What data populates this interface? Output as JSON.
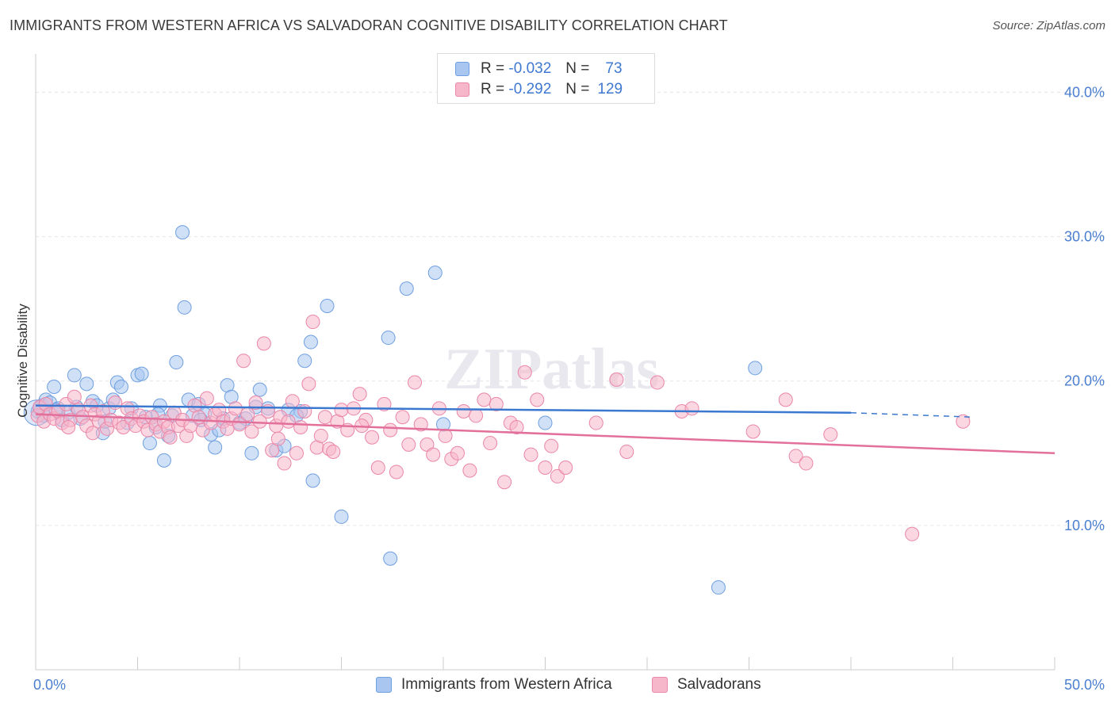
{
  "title": "IMMIGRANTS FROM WESTERN AFRICA VS SALVADORAN COGNITIVE DISABILITY CORRELATION CHART",
  "source": "Source: ZipAtlas.com",
  "watermark": "ZIPatlas",
  "legend_stats": [
    {
      "r_label": "R =",
      "r_value": "-0.032",
      "n_label": "N =",
      "n_value": "73",
      "color": "#a8c6f0",
      "border": "#6f9fe0"
    },
    {
      "r_label": "R =",
      "r_value": "-0.292",
      "n_label": "N =",
      "n_value": "129",
      "color": "#f7b7cb",
      "border": "#ea86a8"
    }
  ],
  "chart_data": {
    "type": "scatter",
    "title": "IMMIGRANTS FROM WESTERN AFRICA VS SALVADORAN COGNITIVE DISABILITY CORRELATION CHART",
    "xlabel": "",
    "ylabel": "Cognitive Disability",
    "xlim": [
      0,
      50
    ],
    "ylim": [
      0,
      42
    ],
    "x_tick_labels": [
      "0.0%",
      "50.0%"
    ],
    "y_ticks": [
      10,
      20,
      30,
      40
    ],
    "y_tick_labels": [
      "10.0%",
      "20.0%",
      "30.0%",
      "40.0%"
    ],
    "grid": true,
    "legend_position": "bottom",
    "series": [
      {
        "name": "Immigrants from Western Africa",
        "color": "#a8c6f0",
        "edge": "#6f9fe0",
        "trend": {
          "x": [
            0,
            40,
            46
          ],
          "y": [
            18.3,
            17.8,
            17.5
          ],
          "solid_until": 40,
          "color": "#3b78d0"
        },
        "points": [
          [
            0.1,
            17.9
          ],
          [
            0.3,
            18.3
          ],
          [
            0.5,
            18.7
          ],
          [
            0.7,
            18.5
          ],
          [
            0.9,
            19.6
          ],
          [
            1.1,
            18.1
          ],
          [
            1.3,
            17.3
          ],
          [
            1.6,
            17.8
          ],
          [
            1.9,
            20.4
          ],
          [
            2.2,
            17.4
          ],
          [
            2.5,
            19.8
          ],
          [
            2.8,
            18.6
          ],
          [
            3.0,
            18.3
          ],
          [
            3.3,
            16.4
          ],
          [
            3.6,
            18.1
          ],
          [
            3.8,
            18.7
          ],
          [
            4.0,
            19.9
          ],
          [
            4.2,
            19.6
          ],
          [
            4.5,
            17.1
          ],
          [
            4.7,
            18.1
          ],
          [
            5.0,
            20.4
          ],
          [
            5.2,
            20.5
          ],
          [
            5.4,
            17.5
          ],
          [
            5.6,
            15.7
          ],
          [
            5.9,
            16.8
          ],
          [
            6.1,
            18.3
          ],
          [
            6.3,
            14.5
          ],
          [
            6.5,
            16.2
          ],
          [
            6.7,
            17.6
          ],
          [
            6.9,
            21.3
          ],
          [
            7.2,
            30.3
          ],
          [
            7.3,
            25.1
          ],
          [
            7.5,
            18.7
          ],
          [
            7.7,
            17.6
          ],
          [
            8.0,
            18.4
          ],
          [
            8.3,
            17.7
          ],
          [
            8.6,
            16.3
          ],
          [
            8.8,
            15.4
          ],
          [
            9.0,
            16.6
          ],
          [
            9.2,
            17.4
          ],
          [
            9.4,
            19.7
          ],
          [
            9.6,
            18.9
          ],
          [
            10.0,
            17.1
          ],
          [
            10.3,
            17.4
          ],
          [
            10.6,
            15.0
          ],
          [
            11.0,
            19.4
          ],
          [
            11.4,
            18.1
          ],
          [
            11.8,
            15.2
          ],
          [
            12.2,
            15.5
          ],
          [
            12.4,
            18.0
          ],
          [
            13.0,
            17.9
          ],
          [
            13.2,
            21.4
          ],
          [
            13.5,
            22.7
          ],
          [
            13.6,
            13.1
          ],
          [
            14.3,
            25.2
          ],
          [
            15.0,
            10.6
          ],
          [
            17.3,
            23.0
          ],
          [
            17.4,
            7.7
          ],
          [
            18.2,
            26.4
          ],
          [
            19.6,
            27.5
          ],
          [
            20.0,
            17.0
          ],
          [
            25.0,
            17.1
          ],
          [
            33.5,
            5.7
          ],
          [
            35.3,
            20.9
          ],
          [
            0.2,
            18.1
          ],
          [
            0.4,
            17.6
          ],
          [
            1.0,
            18.0
          ],
          [
            2.0,
            18.2
          ],
          [
            3.4,
            17.2
          ],
          [
            6.0,
            17.7
          ],
          [
            8.1,
            17.3
          ],
          [
            10.8,
            18.2
          ],
          [
            12.8,
            17.6
          ]
        ]
      },
      {
        "name": "Salvadorans",
        "color": "#f7b7cb",
        "edge": "#ea86a8",
        "trend": {
          "x": [
            0,
            50
          ],
          "y": [
            17.7,
            15.0
          ],
          "color": "#e2709a"
        },
        "points": [
          [
            0.1,
            17.6
          ],
          [
            0.2,
            18.2
          ],
          [
            0.4,
            17.2
          ],
          [
            0.5,
            18.4
          ],
          [
            0.7,
            17.7
          ],
          [
            0.9,
            17.4
          ],
          [
            1.1,
            17.9
          ],
          [
            1.3,
            17.1
          ],
          [
            1.5,
            18.4
          ],
          [
            1.7,
            17.3
          ],
          [
            1.9,
            18.9
          ],
          [
            2.1,
            18.0
          ],
          [
            2.3,
            17.5
          ],
          [
            2.5,
            16.9
          ],
          [
            2.7,
            18.3
          ],
          [
            2.9,
            17.7
          ],
          [
            3.1,
            17.2
          ],
          [
            3.3,
            17.9
          ],
          [
            3.5,
            16.7
          ],
          [
            3.7,
            17.3
          ],
          [
            3.9,
            18.5
          ],
          [
            4.1,
            17.1
          ],
          [
            4.3,
            16.8
          ],
          [
            4.5,
            18.1
          ],
          [
            4.7,
            17.4
          ],
          [
            4.9,
            16.9
          ],
          [
            5.1,
            17.6
          ],
          [
            5.3,
            17.2
          ],
          [
            5.5,
            16.6
          ],
          [
            5.7,
            17.5
          ],
          [
            5.9,
            17.0
          ],
          [
            6.1,
            16.5
          ],
          [
            6.3,
            17.2
          ],
          [
            6.5,
            16.8
          ],
          [
            6.8,
            17.8
          ],
          [
            7.0,
            16.9
          ],
          [
            7.2,
            17.3
          ],
          [
            7.4,
            16.2
          ],
          [
            7.6,
            16.9
          ],
          [
            7.8,
            18.3
          ],
          [
            8.0,
            17.5
          ],
          [
            8.2,
            16.6
          ],
          [
            8.4,
            18.8
          ],
          [
            8.6,
            17.1
          ],
          [
            8.8,
            17.7
          ],
          [
            9.0,
            18.0
          ],
          [
            9.2,
            17.2
          ],
          [
            9.4,
            16.7
          ],
          [
            9.6,
            17.4
          ],
          [
            9.8,
            18.1
          ],
          [
            10.0,
            17.0
          ],
          [
            10.2,
            21.4
          ],
          [
            10.4,
            17.7
          ],
          [
            10.6,
            16.5
          ],
          [
            10.8,
            18.5
          ],
          [
            11.0,
            17.2
          ],
          [
            11.2,
            22.6
          ],
          [
            11.4,
            17.9
          ],
          [
            11.6,
            15.2
          ],
          [
            11.8,
            16.9
          ],
          [
            12.0,
            17.5
          ],
          [
            12.2,
            14.3
          ],
          [
            12.4,
            17.2
          ],
          [
            12.6,
            18.6
          ],
          [
            12.8,
            15.0
          ],
          [
            13.0,
            16.8
          ],
          [
            13.2,
            17.9
          ],
          [
            13.4,
            19.8
          ],
          [
            13.6,
            24.1
          ],
          [
            13.8,
            15.4
          ],
          [
            14.0,
            16.2
          ],
          [
            14.2,
            17.5
          ],
          [
            14.4,
            15.3
          ],
          [
            14.6,
            15.1
          ],
          [
            14.8,
            17.2
          ],
          [
            15.0,
            18.0
          ],
          [
            15.3,
            16.6
          ],
          [
            15.6,
            18.1
          ],
          [
            15.9,
            19.1
          ],
          [
            16.2,
            17.3
          ],
          [
            16.5,
            16.1
          ],
          [
            16.8,
            14.0
          ],
          [
            17.1,
            18.4
          ],
          [
            17.4,
            16.6
          ],
          [
            17.7,
            13.7
          ],
          [
            18.0,
            17.5
          ],
          [
            18.3,
            15.6
          ],
          [
            18.6,
            19.9
          ],
          [
            18.9,
            17.0
          ],
          [
            19.2,
            15.6
          ],
          [
            19.5,
            14.9
          ],
          [
            19.8,
            18.1
          ],
          [
            20.1,
            16.2
          ],
          [
            20.4,
            14.6
          ],
          [
            20.7,
            15.0
          ],
          [
            21.0,
            17.9
          ],
          [
            21.3,
            13.8
          ],
          [
            21.6,
            17.6
          ],
          [
            22.0,
            18.7
          ],
          [
            22.3,
            15.7
          ],
          [
            22.6,
            18.4
          ],
          [
            23.0,
            13.0
          ],
          [
            23.3,
            17.1
          ],
          [
            23.6,
            16.8
          ],
          [
            24.0,
            20.6
          ],
          [
            24.3,
            14.9
          ],
          [
            24.6,
            18.7
          ],
          [
            25.0,
            14.0
          ],
          [
            25.3,
            15.5
          ],
          [
            25.6,
            13.4
          ],
          [
            26.0,
            14.0
          ],
          [
            27.5,
            17.1
          ],
          [
            28.5,
            20.1
          ],
          [
            29.0,
            15.1
          ],
          [
            30.5,
            19.9
          ],
          [
            31.7,
            17.9
          ],
          [
            32.2,
            18.1
          ],
          [
            35.2,
            16.5
          ],
          [
            36.8,
            18.7
          ],
          [
            37.3,
            14.8
          ],
          [
            37.8,
            14.3
          ],
          [
            39.0,
            16.3
          ],
          [
            43.0,
            9.4
          ],
          [
            45.5,
            17.2
          ],
          [
            1.6,
            16.8
          ],
          [
            2.8,
            16.4
          ],
          [
            6.6,
            16.1
          ],
          [
            11.9,
            16.0
          ],
          [
            16.0,
            16.9
          ]
        ]
      }
    ]
  },
  "legend_bottom": [
    {
      "label": "Immigrants from Western Africa",
      "color": "#a8c6f0",
      "border": "#6f9fe0"
    },
    {
      "label": "Salvadorans",
      "color": "#f7b7cb",
      "border": "#ea86a8"
    }
  ]
}
